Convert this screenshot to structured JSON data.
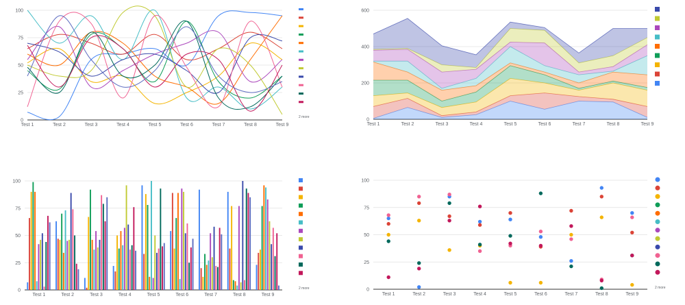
{
  "palette": [
    "#4285f4",
    "#db4437",
    "#f4b400",
    "#0f9d58",
    "#ff6d00",
    "#46bdc6",
    "#ab47bc",
    "#c0ca33",
    "#3949ab",
    "#f06292",
    "#00695c",
    "#c2185b",
    "#5c6bc0"
  ],
  "legend_more": "2 more",
  "chart_data": [
    {
      "type": "line",
      "categories": [
        "Test 1",
        "Test 2",
        "Test 3",
        "Test 4",
        "Test 5",
        "Test 6",
        "Test 7",
        "Test 8",
        "Test 9"
      ],
      "ylim": [
        0,
        100
      ],
      "yticks": [
        0,
        25,
        50,
        75,
        100
      ],
      "legend_visible": 12,
      "series": [
        {
          "values": [
            7,
            3,
            55,
            60,
            65,
            50,
            95,
            98,
            95
          ]
        },
        {
          "values": [
            65,
            78,
            70,
            60,
            78,
            55,
            65,
            80,
            65
          ]
        },
        {
          "values": [
            52,
            65,
            35,
            40,
            15,
            25,
            40,
            70,
            55
          ]
        },
        {
          "values": [
            45,
            28,
            78,
            65,
            35,
            90,
            35,
            20,
            40
          ]
        },
        {
          "values": [
            60,
            50,
            80,
            70,
            40,
            30,
            15,
            55,
            95
          ]
        },
        {
          "values": [
            100,
            70,
            95,
            55,
            100,
            20,
            30,
            10,
            30
          ]
        },
        {
          "values": [
            55,
            85,
            30,
            45,
            60,
            70,
            80,
            35,
            55
          ]
        },
        {
          "values": [
            50,
            40,
            45,
            98,
            95,
            30,
            65,
            50,
            5
          ]
        },
        {
          "values": [
            70,
            62,
            40,
            55,
            60,
            45,
            25,
            75,
            72
          ]
        },
        {
          "values": [
            12,
            90,
            88,
            20,
            95,
            48,
            12,
            90,
            30
          ]
        },
        {
          "values": [
            48,
            25,
            80,
            40,
            50,
            90,
            20,
            12,
            40
          ]
        },
        {
          "values": [
            68,
            30,
            75,
            65,
            30,
            60,
            55,
            8,
            50
          ]
        },
        {
          "values": [
            40,
            95,
            55,
            30,
            45,
            85,
            40,
            25,
            35
          ]
        }
      ]
    },
    {
      "type": "area",
      "stacked": true,
      "categories": [
        "Test 1",
        "Test 2",
        "Test 3",
        "Test 4",
        "Test 5",
        "Test 6",
        "Test 7",
        "Test 8",
        "Test 9"
      ],
      "ylim": [
        0,
        600
      ],
      "yticks": [
        0,
        200,
        400,
        600
      ],
      "series": [
        {
          "values": [
            5,
            65,
            10,
            25,
            100,
            55,
            100,
            95,
            10
          ]
        },
        {
          "values": [
            65,
            50,
            10,
            15,
            30,
            90,
            25,
            15,
            60
          ]
        },
        {
          "values": [
            60,
            30,
            45,
            55,
            95,
            55,
            35,
            90,
            90
          ]
        },
        {
          "values": [
            85,
            70,
            35,
            55,
            70,
            45,
            10,
            10,
            15
          ]
        },
        {
          "values": [
            100,
            45,
            60,
            35,
            15,
            15,
            30,
            50,
            70
          ]
        },
        {
          "values": [
            5,
            60,
            10,
            40,
            90,
            35,
            45,
            5,
            105
          ]
        },
        {
          "values": [
            60,
            65,
            90,
            50,
            25,
            125,
            15,
            25,
            60
          ]
        },
        {
          "values": [
            5,
            5,
            40,
            10,
            75,
            70,
            50,
            60,
            40
          ]
        },
        {
          "values": [
            85,
            165,
            105,
            70,
            35,
            15,
            55,
            150,
            50
          ]
        }
      ]
    },
    {
      "type": "bar",
      "categories": [
        "Test 1",
        "Test 2",
        "Test 3",
        "Test 4",
        "Test 5",
        "Test 6",
        "Test 7",
        "Test 8",
        "Test 9"
      ],
      "ylim": [
        0,
        100
      ],
      "yticks": [
        0,
        25,
        50,
        75,
        100
      ],
      "legend_visible": 12,
      "series": [
        {
          "values": [
            7,
            63,
            11,
            22,
            96,
            54,
            92,
            90,
            23
          ]
        },
        {
          "values": [
            66,
            47,
            2,
            17,
            33,
            89,
            20,
            38,
            34
          ]
        },
        {
          "values": [
            90,
            46,
            67,
            50,
            88,
            38,
            12,
            77,
            37
          ]
        },
        {
          "values": [
            99,
            70,
            92,
            38,
            78,
            66,
            33,
            9,
            77
          ]
        },
        {
          "values": [
            90,
            34,
            46,
            54,
            12,
            89,
            23,
            8,
            96
          ]
        },
        {
          "values": [
            8,
            73,
            37,
            41,
            100,
            10,
            27,
            4,
            94
          ]
        },
        {
          "values": [
            42,
            45,
            54,
            57,
            11,
            93,
            52,
            77,
            83
          ]
        },
        {
          "values": [
            46,
            46,
            39,
            96,
            50,
            90,
            30,
            7,
            63
          ]
        },
        {
          "values": [
            52,
            89,
            46,
            60,
            34,
            52,
            58,
            100,
            42
          ]
        },
        {
          "values": [
            3,
            74,
            87,
            37,
            38,
            61,
            22,
            9,
            57
          ]
        },
        {
          "values": [
            44,
            50,
            79,
            41,
            93,
            25,
            21,
            93,
            31
          ]
        },
        {
          "values": [
            68,
            24,
            63,
            76,
            40,
            39,
            57,
            89,
            52
          ]
        },
        {
          "values": [
            62,
            19,
            85,
            36,
            43,
            47,
            51,
            85,
            4
          ]
        }
      ]
    },
    {
      "type": "scatter",
      "categories": [
        "Test 1",
        "Test 2",
        "Test 3",
        "Test 4",
        "Test 5",
        "Test 6",
        "Test 7",
        "Test 8",
        "Test 9"
      ],
      "ylim": [
        0,
        100
      ],
      "yticks": [
        0,
        25,
        50,
        75,
        100
      ],
      "legend_visible": 12,
      "series": [
        {
          "values": [
            65,
            2,
            85,
            62,
            64,
            48,
            26,
            93,
            70
          ]
        },
        {
          "values": [
            60,
            79,
            67,
            59,
            70,
            39,
            72,
            85,
            52
          ]
        },
        {
          "values": [
            50,
            63,
            36,
            40,
            6,
            6,
            50,
            66,
            4
          ]
        },
        {
          "values": [
            44,
            24,
            79,
            41,
            49,
            88,
            21,
            1,
            31
          ]
        },
        {
          "values": [
            68,
            85,
            87,
            35,
            40,
            53,
            46,
            9,
            66
          ]
        },
        {
          "values": [
            11,
            19,
            63,
            76,
            42,
            40,
            58,
            8,
            31
          ]
        }
      ]
    }
  ]
}
